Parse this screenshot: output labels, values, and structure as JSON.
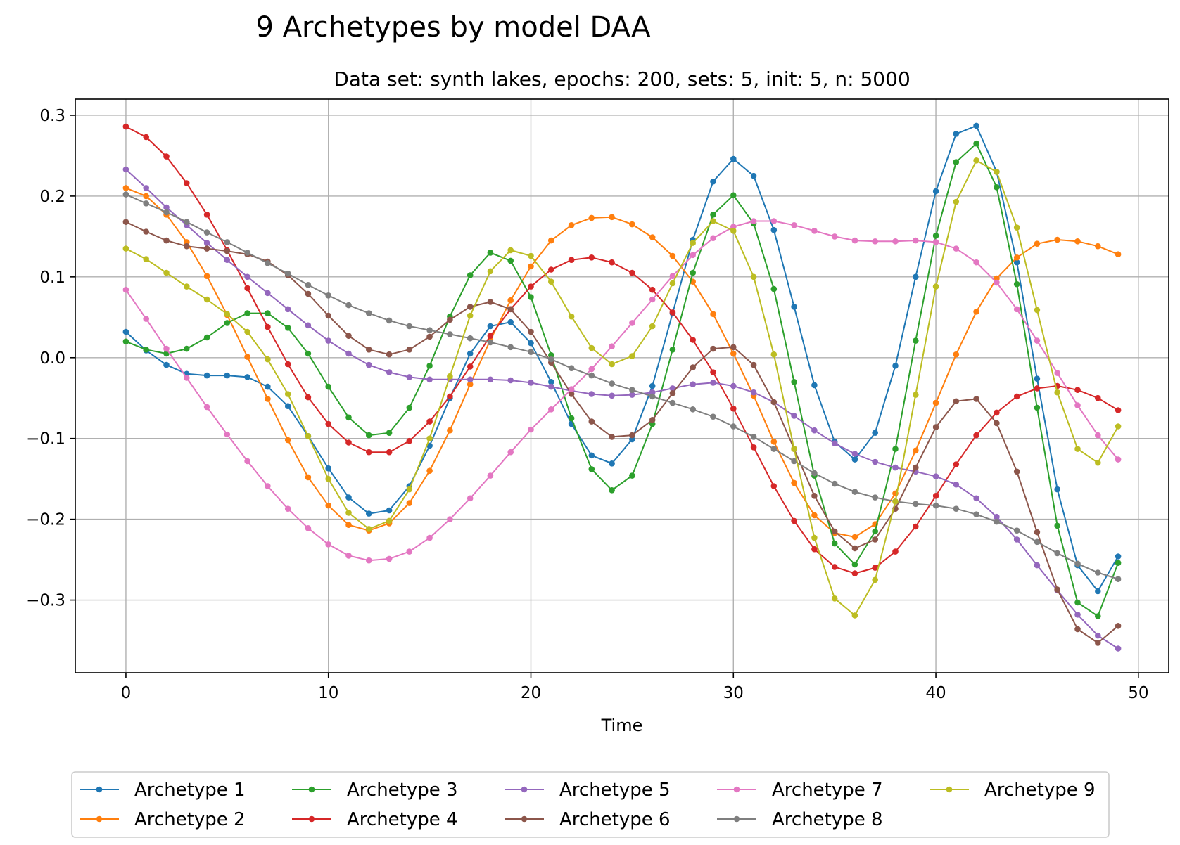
{
  "chart_data": {
    "type": "line",
    "title": "9 Archetypes by model DAA",
    "subtitle": "Data set: synth lakes, epochs: 200, sets: 5, init: 5, n: 5000",
    "xlabel": "Time",
    "ylabel": "",
    "xlim": [
      -2.5,
      51.5
    ],
    "ylim": [
      -0.39,
      0.32
    ],
    "xticks": [
      0,
      10,
      20,
      30,
      40,
      50
    ],
    "xtick_labels": [
      "0",
      "10",
      "20",
      "30",
      "40",
      "50"
    ],
    "yticks": [
      0.3,
      0.2,
      0.1,
      0.0,
      -0.1,
      -0.2,
      -0.3
    ],
    "ytick_labels": [
      "0.3",
      "0.2",
      "0.1",
      "0.0",
      "−0.1",
      "−0.2",
      "−0.3"
    ],
    "grid": true,
    "legend_position": "bottom-center",
    "x": [
      0,
      1,
      2,
      3,
      4,
      5,
      6,
      7,
      8,
      9,
      10,
      11,
      12,
      13,
      14,
      15,
      16,
      17,
      18,
      19,
      20,
      21,
      22,
      23,
      24,
      25,
      26,
      27,
      28,
      29,
      30,
      31,
      32,
      33,
      34,
      35,
      36,
      37,
      38,
      39,
      40,
      41,
      42,
      43,
      44,
      45,
      46,
      47,
      48,
      49
    ],
    "series": [
      {
        "name": "Archetype 1",
        "color": "#1f77b4",
        "values": [
          0.032,
          0.009,
          -0.009,
          -0.02,
          -0.022,
          -0.022,
          -0.024,
          -0.036,
          -0.06,
          -0.097,
          -0.137,
          -0.173,
          -0.193,
          -0.189,
          -0.159,
          -0.109,
          -0.05,
          0.005,
          0.039,
          0.044,
          0.018,
          -0.03,
          -0.082,
          -0.121,
          -0.131,
          -0.101,
          -0.035,
          0.055,
          0.146,
          0.218,
          0.246,
          0.225,
          0.158,
          0.063,
          -0.034,
          -0.104,
          -0.126,
          -0.093,
          -0.01,
          0.1,
          0.206,
          0.277,
          0.287,
          0.23,
          0.118,
          -0.026,
          -0.163,
          -0.257,
          -0.289,
          -0.246
        ]
      },
      {
        "name": "Archetype 2",
        "color": "#ff7f0e",
        "values": [
          0.21,
          0.2,
          0.177,
          0.143,
          0.101,
          0.053,
          0.001,
          -0.051,
          -0.102,
          -0.148,
          -0.183,
          -0.207,
          -0.214,
          -0.205,
          -0.18,
          -0.14,
          -0.09,
          -0.033,
          0.022,
          0.071,
          0.113,
          0.145,
          0.164,
          0.173,
          0.174,
          0.165,
          0.149,
          0.126,
          0.094,
          0.054,
          0.005,
          -0.047,
          -0.104,
          -0.155,
          -0.195,
          -0.217,
          -0.222,
          -0.206,
          -0.168,
          -0.115,
          -0.056,
          0.004,
          0.057,
          0.098,
          0.124,
          0.141,
          0.146,
          0.144,
          0.138,
          0.128
        ]
      },
      {
        "name": "Archetype 3",
        "color": "#2ca02c",
        "values": [
          0.02,
          0.01,
          0.005,
          0.011,
          0.025,
          0.043,
          0.055,
          0.055,
          0.037,
          0.005,
          -0.036,
          -0.074,
          -0.096,
          -0.093,
          -0.062,
          -0.01,
          0.051,
          0.102,
          0.13,
          0.12,
          0.075,
          0.003,
          -0.075,
          -0.138,
          -0.164,
          -0.146,
          -0.082,
          0.01,
          0.105,
          0.177,
          0.201,
          0.166,
          0.085,
          -0.03,
          -0.146,
          -0.23,
          -0.256,
          -0.215,
          -0.113,
          0.021,
          0.151,
          0.242,
          0.265,
          0.211,
          0.091,
          -0.062,
          -0.208,
          -0.303,
          -0.32,
          -0.254
        ]
      },
      {
        "name": "Archetype 4",
        "color": "#d62728",
        "values": [
          0.286,
          0.273,
          0.249,
          0.216,
          0.177,
          0.133,
          0.086,
          0.038,
          -0.008,
          -0.049,
          -0.082,
          -0.105,
          -0.117,
          -0.117,
          -0.103,
          -0.079,
          -0.048,
          -0.011,
          0.027,
          0.06,
          0.088,
          0.109,
          0.121,
          0.124,
          0.118,
          0.105,
          0.084,
          0.056,
          0.022,
          -0.018,
          -0.063,
          -0.111,
          -0.159,
          -0.202,
          -0.237,
          -0.259,
          -0.267,
          -0.26,
          -0.24,
          -0.209,
          -0.171,
          -0.132,
          -0.096,
          -0.068,
          -0.048,
          -0.038,
          -0.035,
          -0.04,
          -0.05,
          -0.065
        ]
      },
      {
        "name": "Archetype 5",
        "color": "#9467bd",
        "values": [
          0.233,
          0.21,
          0.186,
          0.164,
          0.142,
          0.121,
          0.1,
          0.08,
          0.06,
          0.04,
          0.021,
          0.005,
          -0.009,
          -0.018,
          -0.024,
          -0.027,
          -0.027,
          -0.027,
          -0.027,
          -0.028,
          -0.031,
          -0.036,
          -0.041,
          -0.045,
          -0.047,
          -0.046,
          -0.043,
          -0.038,
          -0.033,
          -0.031,
          -0.035,
          -0.043,
          -0.055,
          -0.072,
          -0.09,
          -0.106,
          -0.119,
          -0.129,
          -0.136,
          -0.141,
          -0.147,
          -0.157,
          -0.174,
          -0.197,
          -0.225,
          -0.257,
          -0.288,
          -0.318,
          -0.344,
          -0.36
        ]
      },
      {
        "name": "Archetype 6",
        "color": "#8c564b",
        "values": [
          0.168,
          0.156,
          0.145,
          0.138,
          0.135,
          0.132,
          0.128,
          0.119,
          0.102,
          0.079,
          0.052,
          0.027,
          0.01,
          0.004,
          0.01,
          0.026,
          0.047,
          0.063,
          0.069,
          0.06,
          0.032,
          -0.006,
          -0.045,
          -0.079,
          -0.098,
          -0.096,
          -0.077,
          -0.044,
          -0.012,
          0.011,
          0.013,
          -0.009,
          -0.055,
          -0.113,
          -0.171,
          -0.215,
          -0.236,
          -0.225,
          -0.187,
          -0.136,
          -0.086,
          -0.054,
          -0.051,
          -0.081,
          -0.141,
          -0.216,
          -0.287,
          -0.336,
          -0.353,
          -0.332
        ]
      },
      {
        "name": "Archetype 7",
        "color": "#e377c2",
        "values": [
          0.084,
          0.048,
          0.011,
          -0.025,
          -0.061,
          -0.095,
          -0.128,
          -0.159,
          -0.187,
          -0.211,
          -0.231,
          -0.245,
          -0.251,
          -0.249,
          -0.24,
          -0.223,
          -0.2,
          -0.174,
          -0.146,
          -0.117,
          -0.089,
          -0.064,
          -0.039,
          -0.014,
          0.014,
          0.043,
          0.072,
          0.101,
          0.127,
          0.148,
          0.162,
          0.169,
          0.169,
          0.164,
          0.157,
          0.15,
          0.145,
          0.144,
          0.144,
          0.145,
          0.143,
          0.135,
          0.118,
          0.093,
          0.06,
          0.021,
          -0.019,
          -0.059,
          -0.096,
          -0.126
        ]
      },
      {
        "name": "Archetype 8",
        "color": "#7f7f7f",
        "values": [
          0.202,
          0.191,
          0.18,
          0.168,
          0.155,
          0.143,
          0.13,
          0.117,
          0.104,
          0.09,
          0.077,
          0.065,
          0.055,
          0.046,
          0.039,
          0.034,
          0.029,
          0.024,
          0.019,
          0.013,
          0.007,
          -0.002,
          -0.013,
          -0.022,
          -0.032,
          -0.04,
          -0.048,
          -0.056,
          -0.064,
          -0.073,
          -0.085,
          -0.098,
          -0.113,
          -0.128,
          -0.143,
          -0.156,
          -0.166,
          -0.173,
          -0.178,
          -0.181,
          -0.183,
          -0.187,
          -0.194,
          -0.203,
          -0.214,
          -0.228,
          -0.242,
          -0.255,
          -0.266,
          -0.274
        ]
      },
      {
        "name": "Archetype 9",
        "color": "#bcbd22",
        "values": [
          0.135,
          0.122,
          0.105,
          0.088,
          0.072,
          0.054,
          0.032,
          -0.002,
          -0.045,
          -0.097,
          -0.15,
          -0.192,
          -0.212,
          -0.202,
          -0.163,
          -0.1,
          -0.023,
          0.052,
          0.107,
          0.133,
          0.126,
          0.094,
          0.051,
          0.012,
          -0.008,
          0.002,
          0.039,
          0.092,
          0.142,
          0.169,
          0.157,
          0.1,
          0.004,
          -0.113,
          -0.223,
          -0.298,
          -0.319,
          -0.275,
          -0.178,
          -0.046,
          0.088,
          0.193,
          0.244,
          0.23,
          0.161,
          0.059,
          -0.043,
          -0.113,
          -0.13,
          -0.085
        ]
      }
    ]
  }
}
